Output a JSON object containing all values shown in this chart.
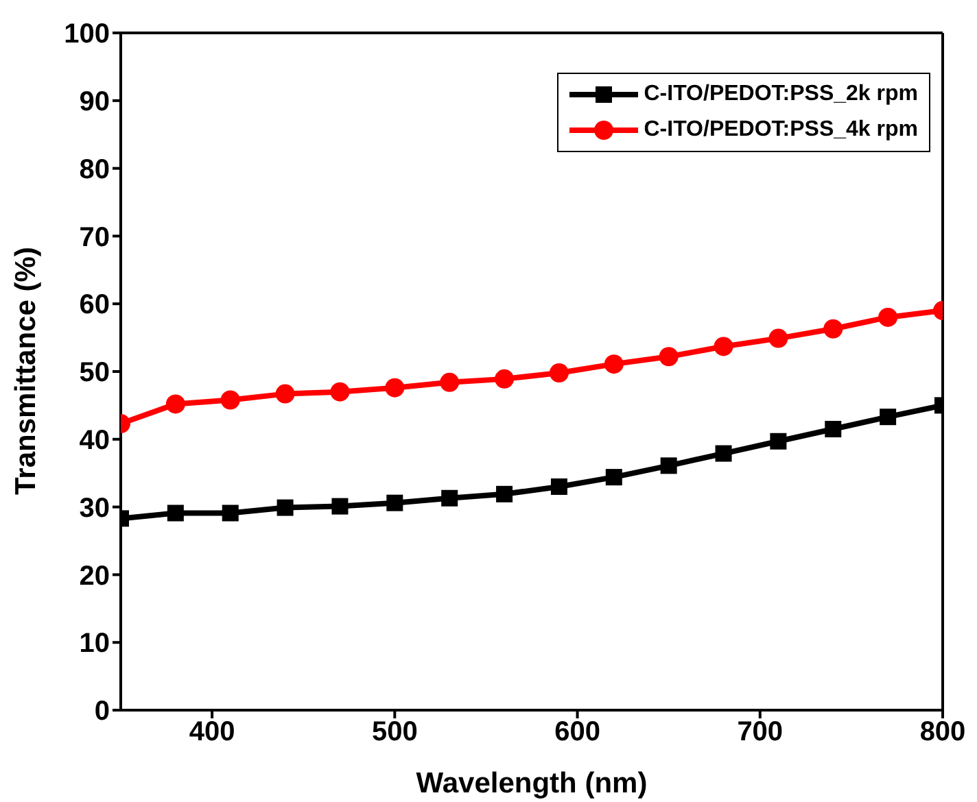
{
  "chart_data": {
    "type": "line",
    "xlabel": "Wavelength (nm)",
    "ylabel": "Transmittance (%)",
    "x": [
      350,
      380,
      410,
      440,
      470,
      500,
      530,
      560,
      590,
      620,
      650,
      680,
      710,
      740,
      770,
      800
    ],
    "xlim": [
      350,
      800
    ],
    "xticks": [
      400,
      500,
      600,
      700,
      800
    ],
    "ylim": [
      0,
      100
    ],
    "yticks": [
      0,
      10,
      20,
      30,
      40,
      50,
      60,
      70,
      80,
      90,
      100
    ],
    "grid": false,
    "legend": "top right",
    "series": [
      {
        "name": "C-ITO/PEDOT:PSS_2k rpm",
        "color": "#000000",
        "marker": "square",
        "values": [
          28.3,
          29.1,
          29.1,
          29.9,
          30.1,
          30.6,
          31.3,
          31.9,
          33.0,
          34.4,
          36.1,
          37.9,
          39.7,
          41.5,
          43.3,
          45.0
        ]
      },
      {
        "name": "C-ITO/PEDOT:PSS_4k rpm",
        "color": "#ff0000",
        "marker": "circle",
        "values": [
          42.3,
          45.2,
          45.8,
          46.7,
          47.0,
          47.6,
          48.4,
          48.9,
          49.8,
          51.1,
          52.2,
          53.7,
          54.9,
          56.3,
          58.0,
          59.0
        ]
      }
    ]
  }
}
